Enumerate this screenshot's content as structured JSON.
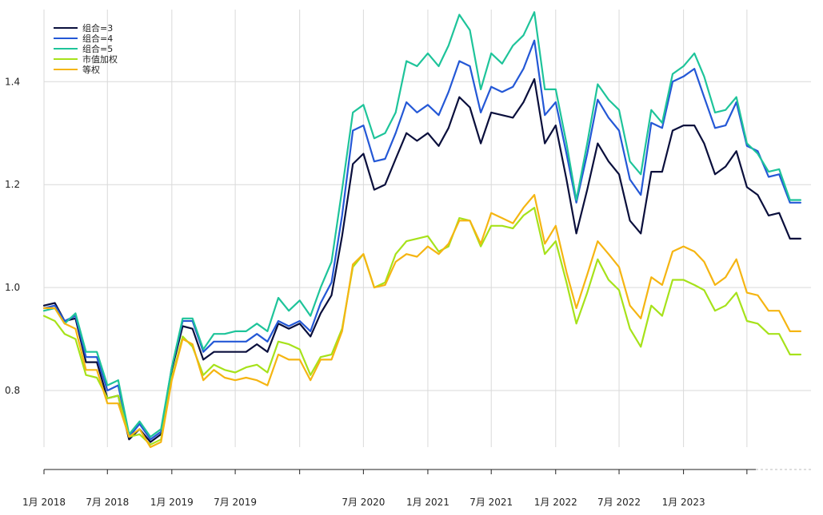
{
  "chart_data": {
    "type": "line",
    "title": "",
    "xlabel": "",
    "ylabel": "",
    "ylim": [
      0.69,
      1.54
    ],
    "y_ticks": [
      0.8,
      1.0,
      1.2,
      1.4
    ],
    "y_tick_labels": [
      "0.8",
      "1.0",
      "1.2",
      "1.4"
    ],
    "x_range": [
      "2018-01-01",
      "2023-12-31"
    ],
    "x_ticks": [
      {
        "date": "2018-01-01",
        "label": "1月 2018"
      },
      {
        "date": "2018-07-01",
        "label": "7月 2018"
      },
      {
        "date": "2019-01-01",
        "label": "1月 2019"
      },
      {
        "date": "2019-07-01",
        "label": "7月 2019"
      },
      {
        "date": "2020-01-01",
        "label": ""
      },
      {
        "date": "2020-07-01",
        "label": "7月 2020"
      },
      {
        "date": "2021-01-01",
        "label": "1月 2021"
      },
      {
        "date": "2021-07-01",
        "label": "7月 2021"
      },
      {
        "date": "2022-01-01",
        "label": "1月 2022"
      },
      {
        "date": "2022-07-01",
        "label": "7月 2022"
      },
      {
        "date": "2023-01-01",
        "label": "1月 2023"
      },
      {
        "date": "2023-07-01",
        "label": ""
      }
    ],
    "grid": true,
    "legend_position": "top-left",
    "x": [
      "2018-01-01",
      "2018-02-01",
      "2018-03-01",
      "2018-04-01",
      "2018-05-01",
      "2018-06-01",
      "2018-07-01",
      "2018-08-01",
      "2018-09-01",
      "2018-10-01",
      "2018-11-01",
      "2018-12-01",
      "2019-01-01",
      "2019-02-01",
      "2019-03-01",
      "2019-04-01",
      "2019-05-01",
      "2019-06-01",
      "2019-07-01",
      "2019-08-01",
      "2019-09-01",
      "2019-10-01",
      "2019-11-01",
      "2019-12-01",
      "2020-01-01",
      "2020-02-01",
      "2020-03-01",
      "2020-04-01",
      "2020-05-01",
      "2020-06-01",
      "2020-07-01",
      "2020-08-01",
      "2020-09-01",
      "2020-10-01",
      "2020-11-01",
      "2020-12-01",
      "2021-01-01",
      "2021-02-01",
      "2021-03-01",
      "2021-04-01",
      "2021-05-01",
      "2021-06-01",
      "2021-07-01",
      "2021-08-01",
      "2021-09-01",
      "2021-10-01",
      "2021-11-01",
      "2021-12-01",
      "2022-01-01",
      "2022-02-01",
      "2022-03-01",
      "2022-04-01",
      "2022-05-01",
      "2022-06-01",
      "2022-07-01",
      "2022-08-01",
      "2022-09-01",
      "2022-10-01",
      "2022-11-01",
      "2022-12-01",
      "2023-01-01",
      "2023-02-01",
      "2023-03-01",
      "2023-04-01",
      "2023-05-01",
      "2023-06-01",
      "2023-07-01",
      "2023-08-01",
      "2023-09-01",
      "2023-10-01",
      "2023-11-01",
      "2023-12-01"
    ],
    "series": [
      {
        "name": "组合=3",
        "color": "#0a0f3c",
        "values": [
          0.965,
          0.97,
          0.935,
          0.94,
          0.855,
          0.855,
          0.785,
          0.79,
          0.705,
          0.725,
          0.7,
          0.715,
          0.84,
          0.925,
          0.92,
          0.86,
          0.875,
          0.875,
          0.875,
          0.875,
          0.89,
          0.875,
          0.93,
          0.92,
          0.93,
          0.905,
          0.95,
          0.985,
          1.1,
          1.24,
          1.26,
          1.19,
          1.2,
          1.25,
          1.3,
          1.285,
          1.3,
          1.275,
          1.31,
          1.37,
          1.35,
          1.28,
          1.34,
          1.335,
          1.33,
          1.36,
          1.405,
          1.28,
          1.315,
          1.21,
          1.105,
          1.19,
          1.28,
          1.245,
          1.22,
          1.13,
          1.105,
          1.225,
          1.225,
          1.305,
          1.315,
          1.315,
          1.28,
          1.22,
          1.235,
          1.265,
          1.195,
          1.18,
          1.14,
          1.145,
          1.095,
          1.095
        ]
      },
      {
        "name": "组合=4",
        "color": "#2458d6",
        "values": [
          0.96,
          0.965,
          0.935,
          0.945,
          0.865,
          0.865,
          0.8,
          0.81,
          0.71,
          0.735,
          0.705,
          0.72,
          0.845,
          0.935,
          0.935,
          0.875,
          0.895,
          0.895,
          0.895,
          0.895,
          0.91,
          0.895,
          0.935,
          0.925,
          0.935,
          0.915,
          0.97,
          1.01,
          1.14,
          1.305,
          1.315,
          1.245,
          1.25,
          1.3,
          1.36,
          1.34,
          1.355,
          1.335,
          1.38,
          1.44,
          1.43,
          1.34,
          1.39,
          1.38,
          1.39,
          1.425,
          1.48,
          1.335,
          1.36,
          1.26,
          1.165,
          1.26,
          1.365,
          1.33,
          1.305,
          1.21,
          1.18,
          1.32,
          1.31,
          1.4,
          1.41,
          1.425,
          1.37,
          1.31,
          1.315,
          1.36,
          1.275,
          1.265,
          1.215,
          1.22,
          1.165,
          1.165
        ]
      },
      {
        "name": "组合=5",
        "color": "#1ec49a",
        "values": [
          0.955,
          0.96,
          0.93,
          0.95,
          0.875,
          0.875,
          0.81,
          0.82,
          0.715,
          0.74,
          0.71,
          0.725,
          0.845,
          0.94,
          0.94,
          0.88,
          0.91,
          0.91,
          0.915,
          0.915,
          0.93,
          0.915,
          0.98,
          0.955,
          0.975,
          0.945,
          1.0,
          1.05,
          1.19,
          1.34,
          1.355,
          1.29,
          1.3,
          1.34,
          1.44,
          1.43,
          1.455,
          1.43,
          1.47,
          1.53,
          1.5,
          1.385,
          1.455,
          1.435,
          1.47,
          1.49,
          1.535,
          1.385,
          1.385,
          1.28,
          1.17,
          1.28,
          1.395,
          1.365,
          1.345,
          1.245,
          1.22,
          1.345,
          1.32,
          1.415,
          1.43,
          1.455,
          1.41,
          1.34,
          1.345,
          1.37,
          1.28,
          1.26,
          1.225,
          1.23,
          1.17,
          1.17
        ]
      },
      {
        "name": "市值加权",
        "color": "#a6e21a",
        "values": [
          0.945,
          0.935,
          0.91,
          0.9,
          0.83,
          0.825,
          0.785,
          0.79,
          0.71,
          0.715,
          0.695,
          0.705,
          0.825,
          0.905,
          0.885,
          0.83,
          0.85,
          0.84,
          0.835,
          0.845,
          0.85,
          0.835,
          0.895,
          0.89,
          0.88,
          0.83,
          0.865,
          0.87,
          0.92,
          1.04,
          1.065,
          1.0,
          1.01,
          1.065,
          1.09,
          1.095,
          1.1,
          1.07,
          1.08,
          1.135,
          1.13,
          1.08,
          1.12,
          1.12,
          1.115,
          1.14,
          1.155,
          1.065,
          1.09,
          1.01,
          0.93,
          0.99,
          1.055,
          1.015,
          0.995,
          0.92,
          0.885,
          0.965,
          0.945,
          1.015,
          1.015,
          1.005,
          0.995,
          0.955,
          0.965,
          0.99,
          0.935,
          0.93,
          0.91,
          0.91,
          0.87,
          0.87
        ]
      },
      {
        "name": "等权",
        "color": "#f5b512",
        "values": [
          0.96,
          0.96,
          0.93,
          0.92,
          0.84,
          0.84,
          0.775,
          0.775,
          0.71,
          0.725,
          0.69,
          0.7,
          0.82,
          0.9,
          0.89,
          0.82,
          0.84,
          0.825,
          0.82,
          0.825,
          0.82,
          0.81,
          0.87,
          0.86,
          0.86,
          0.82,
          0.86,
          0.86,
          0.915,
          1.045,
          1.065,
          1.0,
          1.005,
          1.05,
          1.065,
          1.06,
          1.08,
          1.065,
          1.085,
          1.13,
          1.13,
          1.085,
          1.145,
          1.135,
          1.125,
          1.155,
          1.18,
          1.085,
          1.12,
          1.03,
          0.96,
          1.025,
          1.09,
          1.065,
          1.04,
          0.965,
          0.94,
          1.02,
          1.005,
          1.07,
          1.08,
          1.07,
          1.05,
          1.005,
          1.02,
          1.055,
          0.99,
          0.985,
          0.955,
          0.955,
          0.915,
          0.915
        ]
      }
    ]
  }
}
